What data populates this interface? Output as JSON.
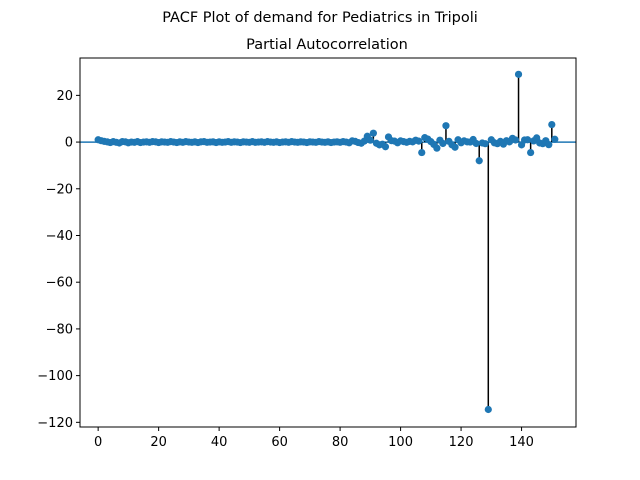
{
  "chart_data": {
    "type": "scatter",
    "suptitle": "PACF Plot of demand for Pediatrics in Tripoli",
    "title": "Partial Autocorrelation",
    "xlim": [
      -6,
      158
    ],
    "ylim": [
      -122,
      36
    ],
    "x_ticks": [
      0,
      20,
      40,
      60,
      80,
      100,
      120,
      140
    ],
    "y_ticks": [
      -120,
      -100,
      -80,
      -60,
      -40,
      -20,
      0,
      20
    ],
    "x_tick_labels": [
      "0",
      "20",
      "40",
      "60",
      "80",
      "100",
      "120",
      "140"
    ],
    "y_tick_labels": [
      "−120",
      "−100",
      "−80",
      "−60",
      "−40",
      "−20",
      "0",
      "20"
    ],
    "baseline": 0,
    "colors": {
      "marker": "#1f77b4",
      "stem": "#000000",
      "baseline": "#1f77b4"
    },
    "series": [
      {
        "x": [
          0,
          1,
          2,
          3,
          4,
          5,
          6,
          7,
          8,
          9,
          10,
          11,
          12,
          13,
          14,
          15,
          16,
          17,
          18,
          19,
          20,
          21,
          22,
          23,
          24,
          25,
          26,
          27,
          28,
          29,
          30,
          31,
          32,
          33,
          34,
          35,
          36,
          37,
          38,
          39,
          40,
          41,
          42,
          43,
          44,
          45,
          46,
          47,
          48,
          49,
          50,
          51,
          52,
          53,
          54,
          55,
          56,
          57,
          58,
          59,
          60,
          61,
          62,
          63,
          64,
          65,
          66,
          67,
          68,
          69,
          70,
          71,
          72,
          73,
          74,
          75,
          76,
          77,
          78,
          79,
          80,
          81,
          82,
          83,
          84,
          85,
          86,
          87,
          88,
          89,
          90,
          91,
          92,
          93,
          94,
          95,
          96,
          97,
          98,
          99,
          100,
          101,
          102,
          103,
          104,
          105,
          106,
          107,
          108,
          109,
          110,
          111,
          112,
          113,
          114,
          115,
          116,
          117,
          118,
          119,
          120,
          121,
          122,
          123,
          124,
          125,
          126,
          127,
          128,
          129,
          130,
          131,
          132,
          133,
          134,
          135,
          136,
          137,
          138,
          139,
          140,
          141,
          142,
          143,
          144,
          145,
          146,
          147,
          148,
          149,
          150,
          151
        ],
        "values": [
          1.0,
          0.6,
          0.3,
          0.1,
          -0.2,
          0.2,
          -0.1,
          -0.4,
          0.2,
          0.1,
          -0.3,
          0.0,
          -0.1,
          0.2,
          -0.2,
          0.0,
          0.1,
          -0.1,
          0.2,
          0.1,
          -0.2,
          0.1,
          0.0,
          -0.1,
          0.2,
          0.0,
          -0.2,
          0.1,
          -0.1,
          0.2,
          0.0,
          -0.1,
          0.1,
          -0.2,
          0.1,
          0.2,
          -0.1,
          0.0,
          0.1,
          -0.2,
          0.1,
          -0.1,
          0.0,
          0.2,
          -0.1,
          0.1,
          0.0,
          -0.2,
          0.1,
          0.0,
          -0.1,
          0.2,
          -0.1,
          0.0,
          0.1,
          -0.1,
          0.2,
          0.0,
          -0.1,
          0.1,
          -0.2,
          0.0,
          0.1,
          -0.1,
          0.2,
          0.0,
          -0.1,
          0.1,
          0.0,
          -0.2,
          0.1,
          0.0,
          -0.1,
          0.2,
          0.0,
          -0.1,
          0.1,
          -0.2,
          0.0,
          0.1,
          -0.1,
          0.2,
          0.0,
          -0.3,
          0.5,
          0.3,
          -0.2,
          -0.5,
          0.4,
          2.5,
          0.8,
          3.8,
          -0.5,
          -1.2,
          -0.9,
          -2.0,
          2.2,
          0.6,
          0.4,
          -0.3,
          0.5,
          0.2,
          -0.1,
          0.3,
          0.1,
          0.8,
          0.4,
          -4.5,
          1.9,
          1.3,
          0.2,
          -1.0,
          -2.6,
          0.8,
          -0.6,
          7.0,
          0.3,
          -1.2,
          -2.2,
          1.0,
          -0.3,
          0.5,
          0.1,
          0.0,
          1.1,
          -0.6,
          -8.0,
          -0.4,
          -0.7,
          -114.5,
          1.0,
          -0.3,
          -0.7,
          0.3,
          -0.9,
          0.6,
          0.1,
          1.6,
          0.9,
          29.0,
          -1.2,
          0.9,
          1.0,
          -4.5,
          0.5,
          1.8,
          -0.4,
          -0.7,
          0.6,
          -1.1,
          7.5,
          1.2
        ]
      }
    ]
  }
}
